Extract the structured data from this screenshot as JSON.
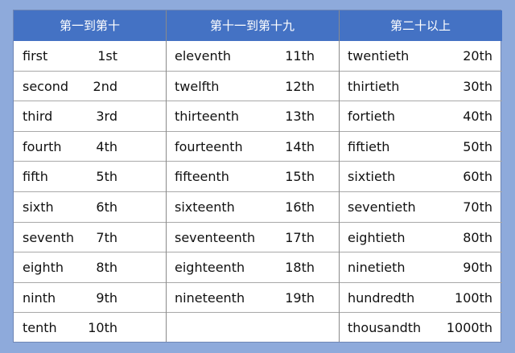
{
  "columns": [
    {
      "header": "第一到第十",
      "rows": [
        {
          "word": "first",
          "num": "1st"
        },
        {
          "word": "second",
          "num": "2nd"
        },
        {
          "word": "third",
          "num": "3rd"
        },
        {
          "word": "fourth",
          "num": "4th"
        },
        {
          "word": "fifth",
          "num": "5th"
        },
        {
          "word": "sixth",
          "num": "6th"
        },
        {
          "word": "seventh",
          "num": "7th"
        },
        {
          "word": "eighth",
          "num": "8th"
        },
        {
          "word": "ninth",
          "num": "9th"
        },
        {
          "word": "tenth",
          "num": "10th"
        }
      ]
    },
    {
      "header": "第十一到第十九",
      "rows": [
        {
          "word": "eleventh",
          "num": "11th"
        },
        {
          "word": "twelfth",
          "num": "12th"
        },
        {
          "word": "thirteenth",
          "num": "13th"
        },
        {
          "word": "fourteenth",
          "num": "14th"
        },
        {
          "word": "fifteenth",
          "num": "15th"
        },
        {
          "word": "sixteenth",
          "num": "16th"
        },
        {
          "word": "seventeenth",
          "num": "17th"
        },
        {
          "word": "eighteenth",
          "num": "18th"
        },
        {
          "word": "nineteenth",
          "num": "19th"
        }
      ]
    },
    {
      "header": "第二十以上",
      "rows": [
        {
          "word": "twentieth",
          "num": "20th"
        },
        {
          "word": "thirtieth",
          "num": "30th"
        },
        {
          "word": "fortieth",
          "num": "40th"
        },
        {
          "word": "fiftieth",
          "num": "50th"
        },
        {
          "word": "sixtieth",
          "num": "60th"
        },
        {
          "word": "seventieth",
          "num": "70th"
        },
        {
          "word": "eightieth",
          "num": "80th"
        },
        {
          "word": "ninetieth",
          "num": "90th"
        },
        {
          "word": "hundredth",
          "num": "100th"
        },
        {
          "word": "thousandth",
          "num": "1000th"
        }
      ]
    }
  ],
  "colors": {
    "header": "#4472c4",
    "background": "#8eaadb"
  }
}
